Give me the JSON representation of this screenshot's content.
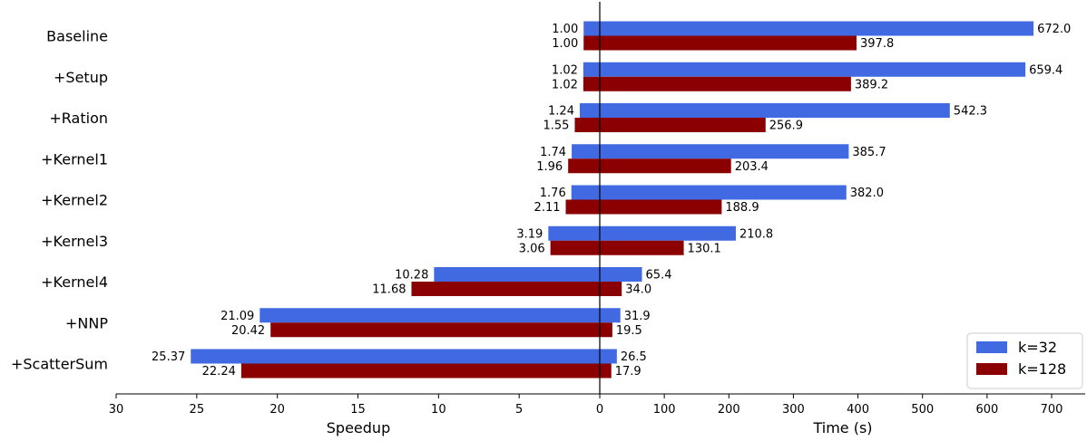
{
  "chart_data": {
    "type": "bar",
    "orientation": "horizontal",
    "categories": [
      "Baseline",
      "+Setup",
      "+Ration",
      "+Kernel1",
      "+Kernel2",
      "+Kernel3",
      "+Kernel4",
      "+NNP",
      "+ScatterSum"
    ],
    "left_panel": {
      "xlabel": "Speedup",
      "xlim": [
        30,
        0
      ],
      "ticks": [
        30,
        25,
        20,
        15,
        10,
        5,
        0
      ],
      "series": [
        {
          "name": "k=32",
          "values": [
            1.0,
            1.02,
            1.24,
            1.74,
            1.76,
            3.19,
            10.28,
            21.09,
            25.37
          ],
          "labels": [
            "1.00",
            "1.02",
            "1.24",
            "1.74",
            "1.76",
            "3.19",
            "10.28",
            "21.09",
            "25.37"
          ]
        },
        {
          "name": "k=128",
          "values": [
            1.0,
            1.02,
            1.55,
            1.96,
            2.11,
            3.06,
            11.68,
            20.42,
            22.24
          ],
          "labels": [
            "1.00",
            "1.02",
            "1.55",
            "1.96",
            "2.11",
            "3.06",
            "11.68",
            "20.42",
            "22.24"
          ]
        }
      ]
    },
    "right_panel": {
      "xlabel": "Time (s)",
      "xlim": [
        0,
        750
      ],
      "ticks": [
        0,
        100,
        200,
        300,
        400,
        500,
        600,
        700
      ],
      "series": [
        {
          "name": "k=32",
          "values": [
            672.0,
            659.4,
            542.3,
            385.7,
            382.0,
            210.8,
            65.4,
            31.9,
            26.5
          ],
          "labels": [
            "672.0",
            "659.4",
            "542.3",
            "385.7",
            "382.0",
            "210.8",
            "65.4",
            "31.9",
            "26.5"
          ]
        },
        {
          "name": "k=128",
          "values": [
            397.8,
            389.2,
            256.9,
            203.4,
            188.9,
            130.1,
            34.0,
            19.5,
            17.9
          ],
          "labels": [
            "397.8",
            "389.2",
            "256.9",
            "203.4",
            "188.9",
            "130.1",
            "34.0",
            "19.5",
            "17.9"
          ]
        }
      ]
    },
    "legend": {
      "position": "bottom-right",
      "entries": [
        {
          "label": "k=32",
          "color": "#4169E1"
        },
        {
          "label": "k=128",
          "color": "#8B0000"
        }
      ]
    },
    "colors": {
      "k32": "#4169E1",
      "k128": "#8B0000"
    },
    "grid": false
  }
}
